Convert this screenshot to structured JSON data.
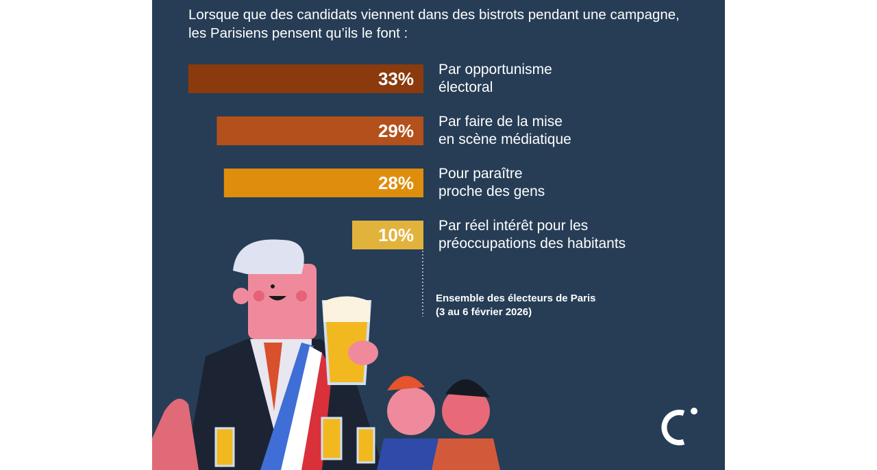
{
  "chart_data": {
    "type": "bar",
    "orientation": "horizontal",
    "title": "Lorsque que des candidats viennent dans des bistrots pendant une campagne,\nles Parisiens pensent qu’ils le font :",
    "categories": [
      "Par opportunisme\nélectoral",
      "Par faire de la mise\nen scène médiatique",
      "Pour paraître\nproche des gens",
      "Par réel intérêt pour les\npréoccupations des habitants"
    ],
    "values": [
      33,
      29,
      28,
      10
    ],
    "value_labels": [
      "33%",
      "29%",
      "28%",
      "10%"
    ],
    "colors": [
      "#8a3a0c",
      "#b4501b",
      "#df8d0c",
      "#e2b33c"
    ],
    "note": "Ensemble des électeurs de Paris\n(3 au 6 février 2026)"
  }
}
